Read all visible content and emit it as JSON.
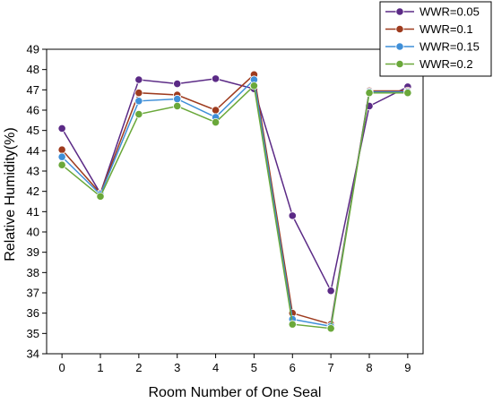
{
  "chart_data": {
    "type": "line",
    "title": "",
    "xlabel": "Room Number of One Seal",
    "ylabel": "Relative Humidity(%)",
    "x": [
      0,
      1,
      2,
      3,
      4,
      5,
      6,
      7,
      8,
      9
    ],
    "xlim": [
      -0.4,
      9.4
    ],
    "ylim": [
      34,
      49
    ],
    "yticks": [
      34,
      35,
      36,
      37,
      38,
      39,
      40,
      41,
      42,
      43,
      44,
      45,
      46,
      47,
      48,
      49
    ],
    "grid": false,
    "legend_position": "top-right",
    "series": [
      {
        "name": "WWR=0.05",
        "color": "#5b2a86",
        "values": [
          45.1,
          41.9,
          47.5,
          47.3,
          47.55,
          47.05,
          40.8,
          37.1,
          46.2,
          47.15
        ]
      },
      {
        "name": "WWR=0.1",
        "color": "#9e3b1e",
        "values": [
          44.05,
          41.9,
          46.85,
          46.75,
          46.0,
          47.75,
          36.0,
          35.45,
          46.95,
          46.95
        ]
      },
      {
        "name": "WWR=0.15",
        "color": "#3f8fd8",
        "values": [
          43.7,
          41.85,
          46.45,
          46.55,
          45.65,
          47.5,
          35.7,
          35.35,
          46.9,
          46.9
        ]
      },
      {
        "name": "WWR=0.2",
        "color": "#6aa83a",
        "values": [
          43.3,
          41.75,
          45.8,
          46.2,
          45.4,
          47.2,
          35.45,
          35.25,
          46.85,
          46.85
        ]
      }
    ]
  }
}
